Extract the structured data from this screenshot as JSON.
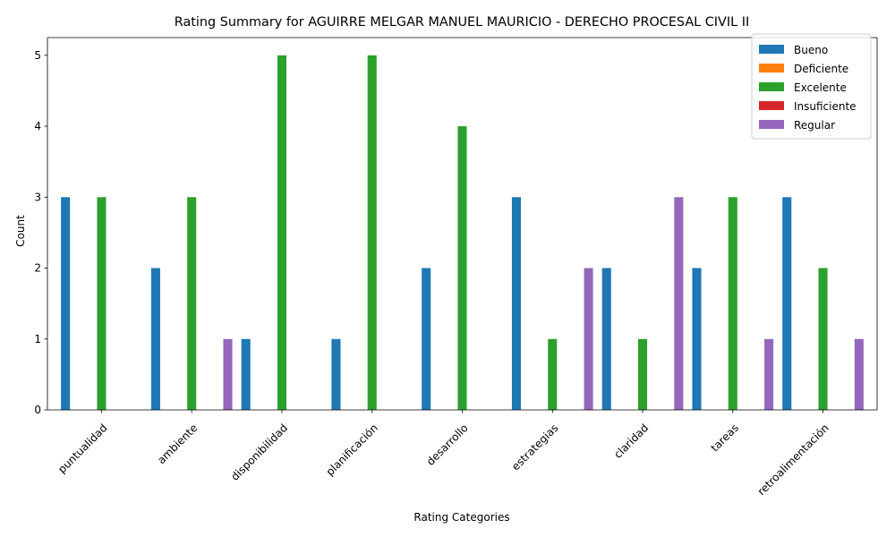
{
  "chart_data": {
    "type": "bar",
    "title": "Rating Summary for AGUIRRE MELGAR MANUEL MAURICIO - DERECHO PROCESAL CIVIL II",
    "xlabel": "Rating Categories",
    "ylabel": "Count",
    "ylim": [
      0,
      5.25
    ],
    "yticks": [
      "0",
      "1",
      "2",
      "3",
      "4",
      "5"
    ],
    "legend_position": "top-right",
    "categories": [
      "puntualidad",
      "ambiente",
      "disponibilidad",
      "planificación",
      "desarrollo",
      "estrategias",
      "claridad",
      "tareas",
      "retroalimentación"
    ],
    "series": [
      {
        "name": "Bueno",
        "color": "#1f77b4",
        "values": [
          3,
          2,
          1,
          1,
          2,
          3,
          2,
          2,
          3
        ]
      },
      {
        "name": "Deficiente",
        "color": "#ff7f0e",
        "values": [
          0,
          0,
          0,
          0,
          0,
          0,
          0,
          0,
          0
        ]
      },
      {
        "name": "Excelente",
        "color": "#2ca02c",
        "values": [
          3,
          3,
          5,
          5,
          4,
          1,
          1,
          3,
          2
        ]
      },
      {
        "name": "Insuficiente",
        "color": "#d62728",
        "values": [
          0,
          0,
          0,
          0,
          0,
          0,
          0,
          0,
          0
        ]
      },
      {
        "name": "Regular",
        "color": "#9467bd",
        "values": [
          0,
          1,
          0,
          0,
          0,
          2,
          3,
          1,
          1
        ]
      }
    ]
  }
}
